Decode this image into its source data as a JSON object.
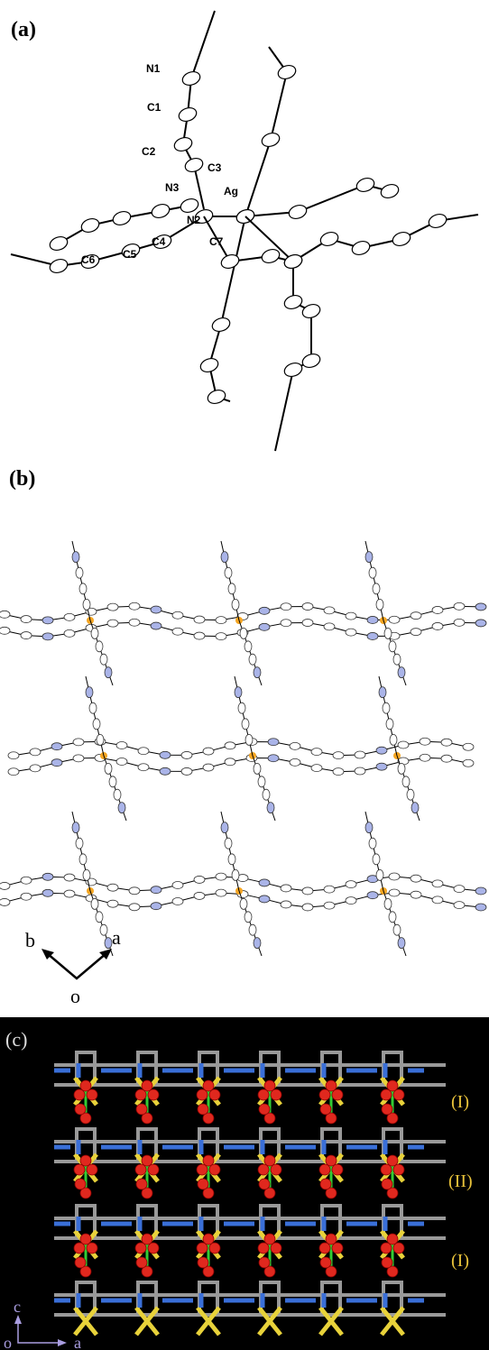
{
  "panels": [
    {
      "label": "(a)",
      "atom_labels": [
        "N1",
        "C1",
        "C2",
        "C3",
        "N3",
        "Ag",
        "N2",
        "C4",
        "C5",
        "C6",
        "C7"
      ]
    },
    {
      "label": "(b)",
      "axes": [
        "b",
        "a",
        "o"
      ]
    },
    {
      "label": "(c)",
      "layer_labels": [
        "(I)",
        "(II)",
        "(I)"
      ],
      "axes": [
        "c",
        "o",
        "a"
      ]
    }
  ]
}
